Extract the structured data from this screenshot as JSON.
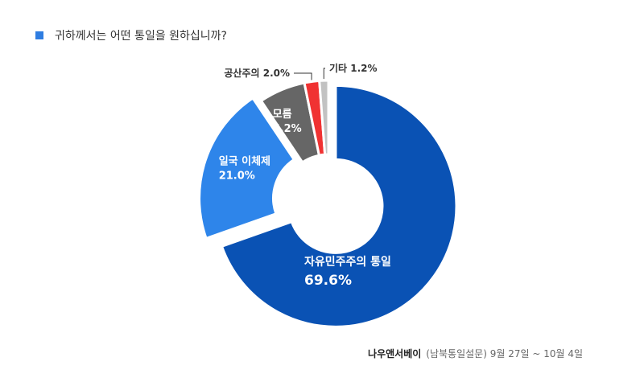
{
  "title": "귀하께서는 어떤 통일을 원하십니까?",
  "source": {
    "brand": "나우앤서베이",
    "note": "(남북통일설문) 9월 27일 ~ 10월 4일"
  },
  "chart_data": {
    "type": "pie",
    "title": "귀하께서는 어떤 통일을 원하십니까?",
    "donut": true,
    "categories": [
      "자유민주주의 통일",
      "일국 이체제",
      "모름",
      "공산주의",
      "기타"
    ],
    "values": [
      69.6,
      21.0,
      6.2,
      2.0,
      1.2
    ],
    "value_labels": [
      "69.6%",
      "21.0%",
      "6.2%",
      "2.0%",
      "1.2%"
    ],
    "colors": [
      "#0a52b4",
      "#2e85ea",
      "#666666",
      "#f03232",
      "#c2c2c2"
    ],
    "label_placement": [
      "inside",
      "inside",
      "inside",
      "outside",
      "outside"
    ],
    "exploded": [
      "자유민주주의 통일",
      "일국 이체제"
    ]
  }
}
